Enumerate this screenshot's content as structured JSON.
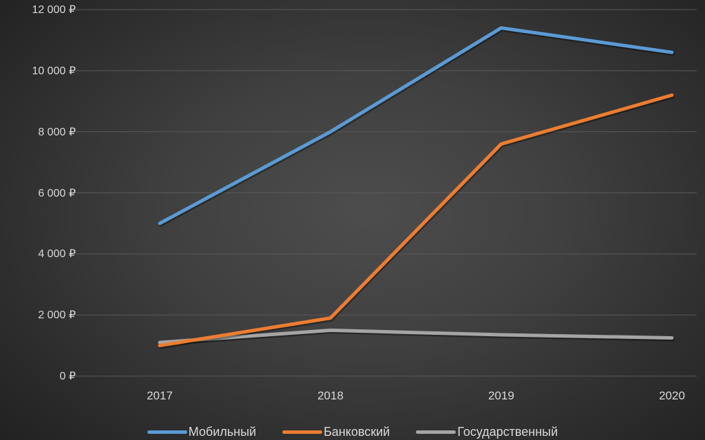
{
  "chart_data": {
    "type": "line",
    "title": "",
    "xlabel": "",
    "ylabel": "",
    "categories": [
      "2017",
      "2018",
      "2019",
      "2020"
    ],
    "series": [
      {
        "name": "Мобильный",
        "color": "#5b9bd5",
        "values": [
          5000,
          8000,
          11400,
          10600
        ]
      },
      {
        "name": "Банковский",
        "color": "#ed7d31",
        "values": [
          1000,
          1900,
          7600,
          9200
        ]
      },
      {
        "name": "Государственный",
        "color": "#a5a5a5",
        "values": [
          1100,
          1500,
          1350,
          1250
        ]
      }
    ],
    "ylim": [
      0,
      12000
    ],
    "yticks": [
      0,
      2000,
      4000,
      6000,
      8000,
      10000,
      12000
    ],
    "ytick_labels": [
      "0 ₽",
      "2 000 ₽",
      "4 000 ₽",
      "6 000 ₽",
      "8 000 ₽",
      "10 000 ₽",
      "12 000 ₽"
    ],
    "grid": true,
    "legend_position": "bottom"
  }
}
